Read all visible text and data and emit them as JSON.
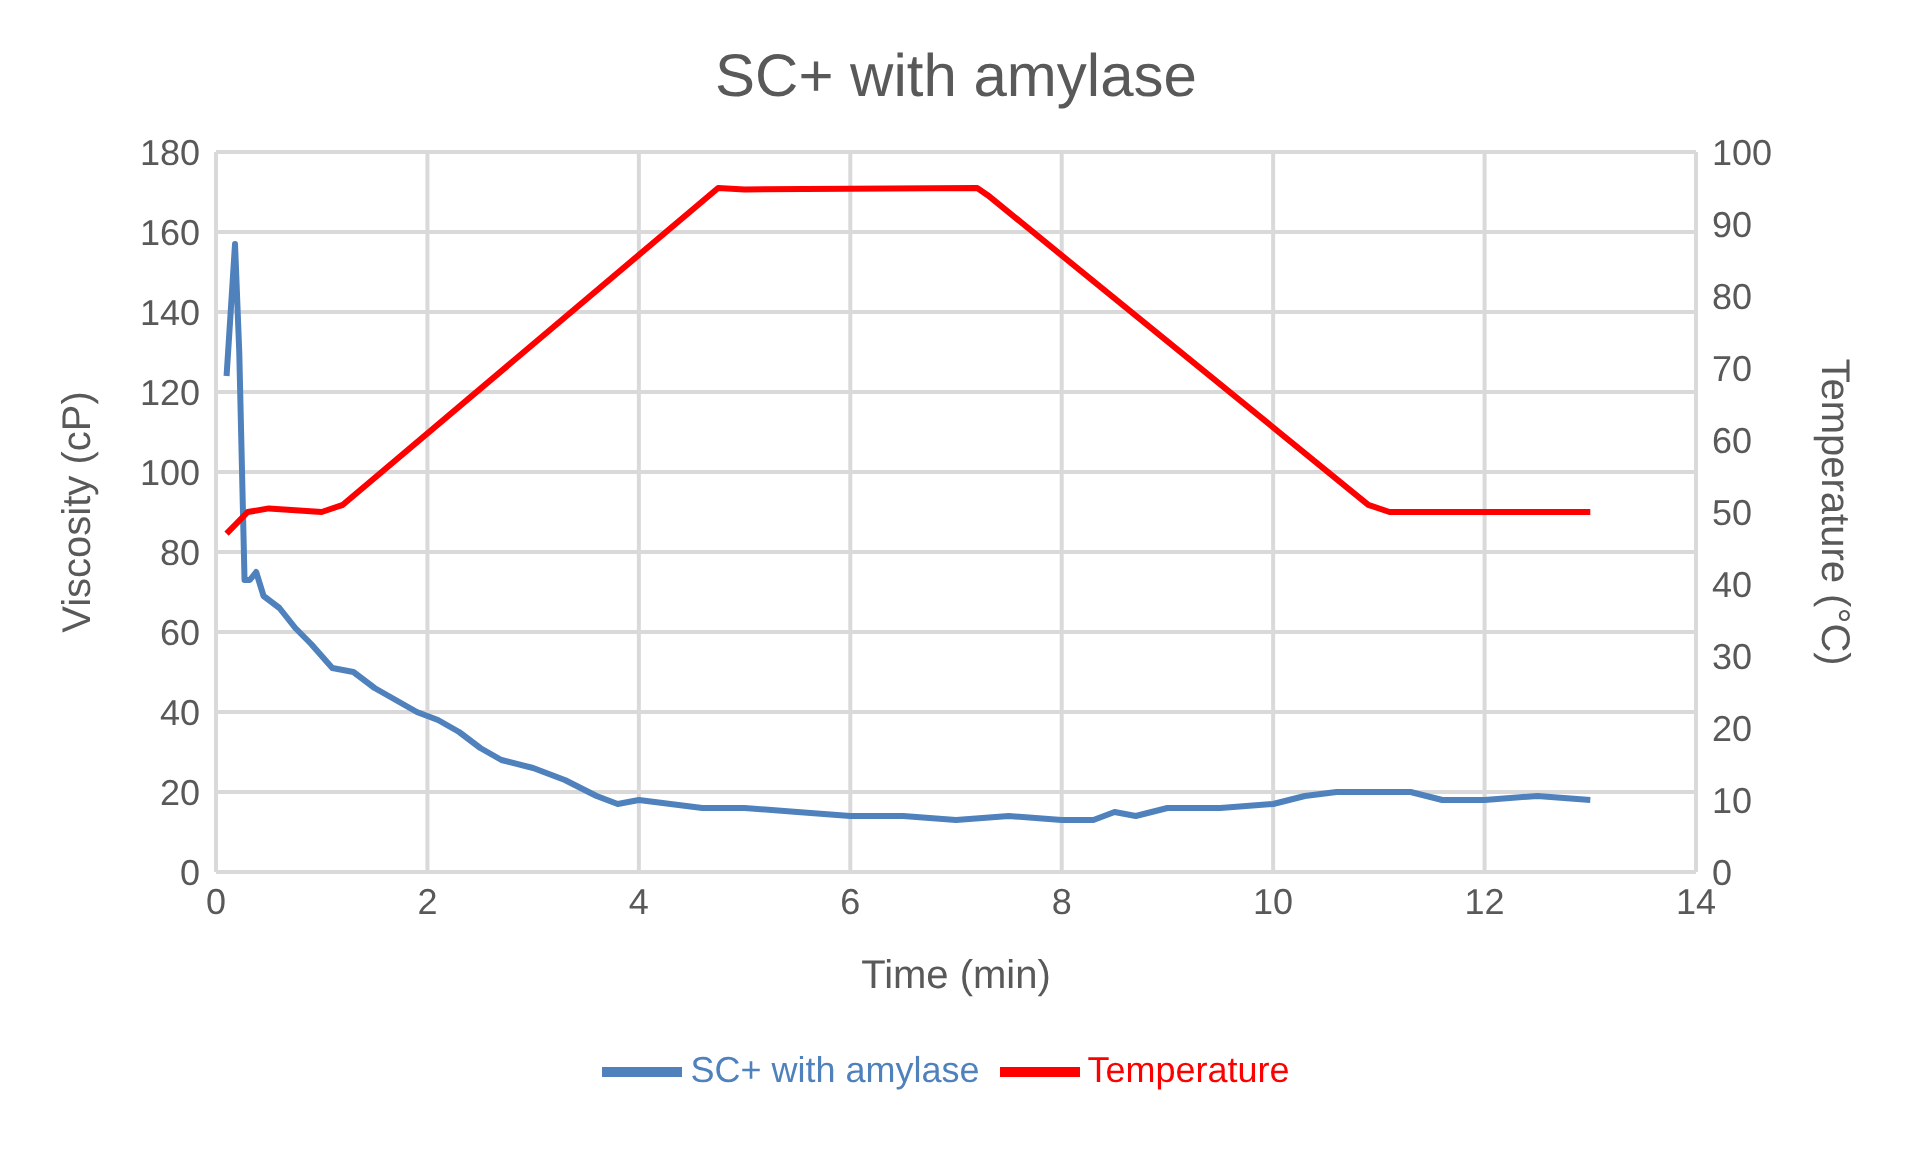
{
  "chart_data": {
    "type": "line",
    "title": "SC+ with amylase",
    "xlabel": "Time (min)",
    "ylabel": "Viscosity (cP)",
    "y2label": "Temperature (°C)",
    "xlim": [
      0,
      14
    ],
    "xticks": [
      0,
      2,
      4,
      6,
      8,
      10,
      12,
      14
    ],
    "ylim": [
      0,
      180
    ],
    "yticks": [
      0,
      20,
      40,
      60,
      80,
      100,
      120,
      140,
      160,
      180
    ],
    "y2lim": [
      0,
      100
    ],
    "y2ticks": [
      0,
      10,
      20,
      30,
      40,
      50,
      60,
      70,
      80,
      90,
      100
    ],
    "grid": true,
    "legend": "bottom",
    "marker": "none",
    "line_style": "solid",
    "series": [
      {
        "name": "SC+ with amylase",
        "color": "#4f81bd",
        "x": [
          0.1,
          0.18,
          0.22,
          0.27,
          0.32,
          0.38,
          0.45,
          0.6,
          0.75,
          0.9,
          1.0,
          1.1,
          1.3,
          1.5,
          1.7,
          1.9,
          2.1,
          2.3,
          2.5,
          2.7,
          3.0,
          3.3,
          3.6,
          3.8,
          4.0,
          4.3,
          4.6,
          5.0,
          5.5,
          6.0,
          6.5,
          7.0,
          7.5,
          8.0,
          8.3,
          8.5,
          8.7,
          9.0,
          9.5,
          10.0,
          10.3,
          10.6,
          11.0,
          11.3,
          11.6,
          12.0,
          12.5,
          13.0
        ],
        "values": [
          124,
          157,
          130,
          73,
          73,
          75,
          69,
          66,
          61,
          57,
          54,
          51,
          50,
          46,
          43,
          40,
          38,
          35,
          31,
          28,
          26,
          23,
          19,
          17,
          18,
          17,
          16,
          16,
          15,
          14,
          14,
          13,
          14,
          13,
          13,
          15,
          14,
          16,
          16,
          17,
          19,
          20,
          20,
          20,
          18,
          18,
          19,
          18
        ]
      },
      {
        "name": "Temperature",
        "color": "#ff0000",
        "axis": "y2",
        "x": [
          0.1,
          0.3,
          0.5,
          1.0,
          1.2,
          4.75,
          5.0,
          7.2,
          7.3,
          10.9,
          11.1,
          13.0
        ],
        "values": [
          47,
          50,
          50.5,
          50,
          51,
          95,
          94.8,
          95,
          94,
          51,
          50,
          50
        ]
      }
    ]
  }
}
